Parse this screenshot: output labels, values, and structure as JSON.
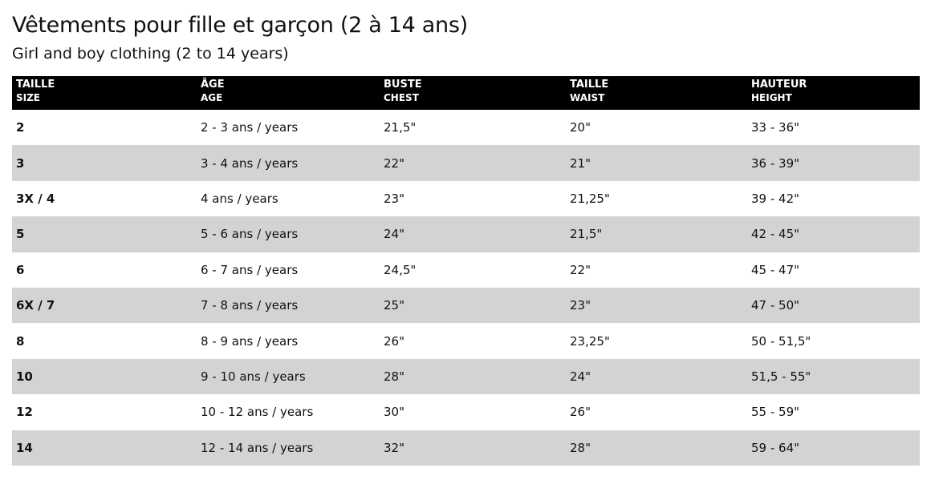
{
  "title": "Vêtements pour fille et garçon (2 à 14 ans)",
  "subtitle": "Girl and boy clothing (2 to 14 years)",
  "columns": [
    {
      "fr": "TAILLE",
      "en": "SIZE"
    },
    {
      "fr": "ÂGE",
      "en": "AGE"
    },
    {
      "fr": "BUSTE",
      "en": "CHEST"
    },
    {
      "fr": "TAILLE",
      "en": "WAIST"
    },
    {
      "fr": "HAUTEUR",
      "en": "HEIGHT"
    }
  ],
  "rows": [
    [
      "2",
      "2 - 3 ans / years",
      "21,5\"",
      "20\"",
      "33 - 36\""
    ],
    [
      "3",
      "3 - 4 ans / years",
      "22\"",
      "21\"",
      "36 - 39\""
    ],
    [
      "3X / 4",
      "4 ans / years",
      "23\"",
      "21,25\"",
      "39 - 42\""
    ],
    [
      "5",
      "5 - 6 ans / years",
      "24\"",
      "21,5\"",
      "42 - 45\""
    ],
    [
      "6",
      "6 - 7 ans / years",
      "24,5\"",
      "22\"",
      "45 - 47\""
    ],
    [
      "6X / 7",
      "7 - 8 ans / years",
      "25\"",
      "23\"",
      "47 - 50\""
    ],
    [
      "8",
      "8 - 9 ans / years",
      "26\"",
      "23,25\"",
      "50 - 51,5\""
    ],
    [
      "10",
      "9 - 10 ans / years",
      "28\"",
      "24\"",
      "51,5 - 55\""
    ],
    [
      "12",
      "10 - 12 ans / years",
      "30\"",
      "26\"",
      "55 - 59\""
    ],
    [
      "14",
      "12 - 14 ans / years",
      "32\"",
      "28\"",
      "59 - 64\""
    ]
  ]
}
